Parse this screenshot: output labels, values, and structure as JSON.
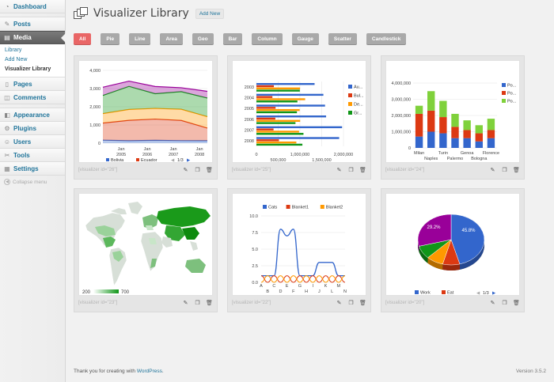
{
  "sidebar": {
    "dashboard": "Dashboard",
    "posts": "Posts",
    "media": "Media",
    "media_sub": [
      "Library",
      "Add New",
      "Visualizer Library"
    ],
    "pages": "Pages",
    "comments": "Comments",
    "appearance": "Appearance",
    "plugins": "Plugins",
    "users": "Users",
    "tools": "Tools",
    "settings": "Settings",
    "collapse": "Collapse menu"
  },
  "header": {
    "title": "Visualizer Library",
    "add_new": "Add New"
  },
  "filters": [
    "All",
    "Pie",
    "Line",
    "Area",
    "Geo",
    "Bar",
    "Column",
    "Gauge",
    "Scatter",
    "Candlestick"
  ],
  "cards": [
    {
      "shortcode": "[visualizer id=\"26\"]"
    },
    {
      "shortcode": "[visualizer id=\"25\"]"
    },
    {
      "shortcode": "[visualizer id=\"24\"]"
    },
    {
      "shortcode": "[visualizer id=\"23\"]"
    },
    {
      "shortcode": "[visualizer id=\"22\"]"
    },
    {
      "shortcode": "[visualizer id=\"20\"]"
    }
  ],
  "footer": {
    "thanks_prefix": "Thank you for creating with ",
    "wordpress": "WordPress",
    "thanks_suffix": ".",
    "version": "Version 3.5.2"
  },
  "chart_data": [
    {
      "type": "area",
      "x": [
        "2004",
        "2005",
        "2006",
        "2007",
        "2008"
      ],
      "xlabels": [
        "Jan 2005",
        "Jan 2006",
        "Jan 2007",
        "Jan 2008"
      ],
      "ylim": [
        0,
        4000
      ],
      "yticks": [
        "0",
        "1,000",
        "2,000",
        "3,000",
        "4,000"
      ],
      "series": [
        {
          "name": "Bolivia",
          "color": "#3366cc",
          "values": [
            165,
            135,
            157,
            139,
            136
          ]
        },
        {
          "name": "Ecuador",
          "color": "#dc3912",
          "values": [
            938,
            1120,
            1167,
            1110,
            691
          ]
        },
        {
          "values": [
            522,
            599,
            587,
            615,
            629
          ]
        },
        {
          "values": [
            998,
            1268,
            807,
            968,
            1026
          ]
        },
        {
          "values": [
            450,
            288,
            397,
            215,
            366
          ]
        }
      ],
      "colors": [
        "#3366cc",
        "#dc3912",
        "#ff9900",
        "#109618",
        "#990099"
      ],
      "legend_page": "1/3"
    },
    {
      "type": "bar",
      "categories": [
        "2003",
        "2004",
        "2005",
        "2006",
        "2007",
        "2008"
      ],
      "xticks": [
        "0",
        "500,000",
        "1,000,000",
        "1,500,000",
        "2,000,000"
      ],
      "xlim": [
        0,
        2000000
      ],
      "series": [
        {
          "name": "Au...",
          "color": "#3366cc",
          "values": [
            1336060,
            1538156,
            1576579,
            1600652,
            1968113,
            1901067
          ]
        },
        {
          "name": "Bul...",
          "color": "#dc3912",
          "values": [
            400361,
            366849,
            440514,
            434552,
            393032,
            517206
          ]
        },
        {
          "name": "De...",
          "color": "#ff9900",
          "values": [
            1001582,
            1119450,
            993360,
            1004163,
            979198,
            916965
          ]
        },
        {
          "name": "Gr...",
          "color": "#109618",
          "values": [
            997974,
            941795,
            930593,
            897127,
            1080887,
            1056036
          ]
        }
      ]
    },
    {
      "type": "bar",
      "categories": [
        "Milan",
        "Naples",
        "Turin",
        "Palermo",
        "Genoa",
        "Bologna",
        "Florence"
      ],
      "ylim": [
        0,
        4000000
      ],
      "yticks": [
        "0",
        "1,000,000",
        "2,000,000",
        "3,000,000",
        "4,000,000"
      ],
      "series": [
        {
          "name": "Po...",
          "color": "#3366cc",
          "values": [
            700000,
            1000000,
            900000,
            600000,
            600000,
            400000,
            600000
          ]
        },
        {
          "name": "Po...",
          "color": "#dc3912",
          "values": [
            1400000,
            1300000,
            1000000,
            700000,
            500000,
            500000,
            500000
          ]
        },
        {
          "name": "Po...",
          "color": "#7fd13b",
          "values": [
            500000,
            1200000,
            1000000,
            800000,
            600000,
            500000,
            700000
          ]
        }
      ]
    },
    {
      "type": "geo",
      "legend_min": "200",
      "legend_max": "700"
    },
    {
      "type": "line",
      "categories": [
        "A",
        "B",
        "C",
        "D",
        "E",
        "F",
        "G",
        "H",
        "I",
        "J",
        "K",
        "L",
        "M",
        "N"
      ],
      "ylim": [
        0,
        10
      ],
      "yticks": [
        "0.0",
        "2.5",
        "5.0",
        "7.5",
        "10.0"
      ],
      "series": [
        {
          "name": "Cats",
          "color": "#3366cc",
          "values": [
            1,
            1,
            1,
            8,
            7,
            8,
            1,
            1,
            1,
            3,
            3,
            3,
            1,
            1
          ]
        },
        {
          "name": "Blanket1",
          "color": "#dc3912",
          "values": [
            1,
            0,
            1,
            0,
            1,
            0,
            1,
            0,
            1,
            0,
            1,
            0,
            1,
            0
          ]
        },
        {
          "name": "Blanket2",
          "color": "#ff9900",
          "values": [
            0,
            1,
            0,
            1,
            0,
            1,
            0,
            1,
            0,
            1,
            0,
            1,
            0,
            1
          ]
        }
      ]
    },
    {
      "type": "pie",
      "slices": [
        {
          "name": "Work",
          "value": 45.8,
          "color": "#3366cc"
        },
        {
          "name": "Eat",
          "value": 8.3,
          "color": "#dc3912"
        },
        {
          "name": "",
          "value": 8.3,
          "color": "#ff9900"
        },
        {
          "name": "",
          "value": 8.4,
          "color": "#109618"
        },
        {
          "name": "",
          "value": 29.2,
          "color": "#990099"
        }
      ],
      "labels": [
        "45.8%",
        "29.2%"
      ],
      "legend_page": "1/3"
    }
  ]
}
